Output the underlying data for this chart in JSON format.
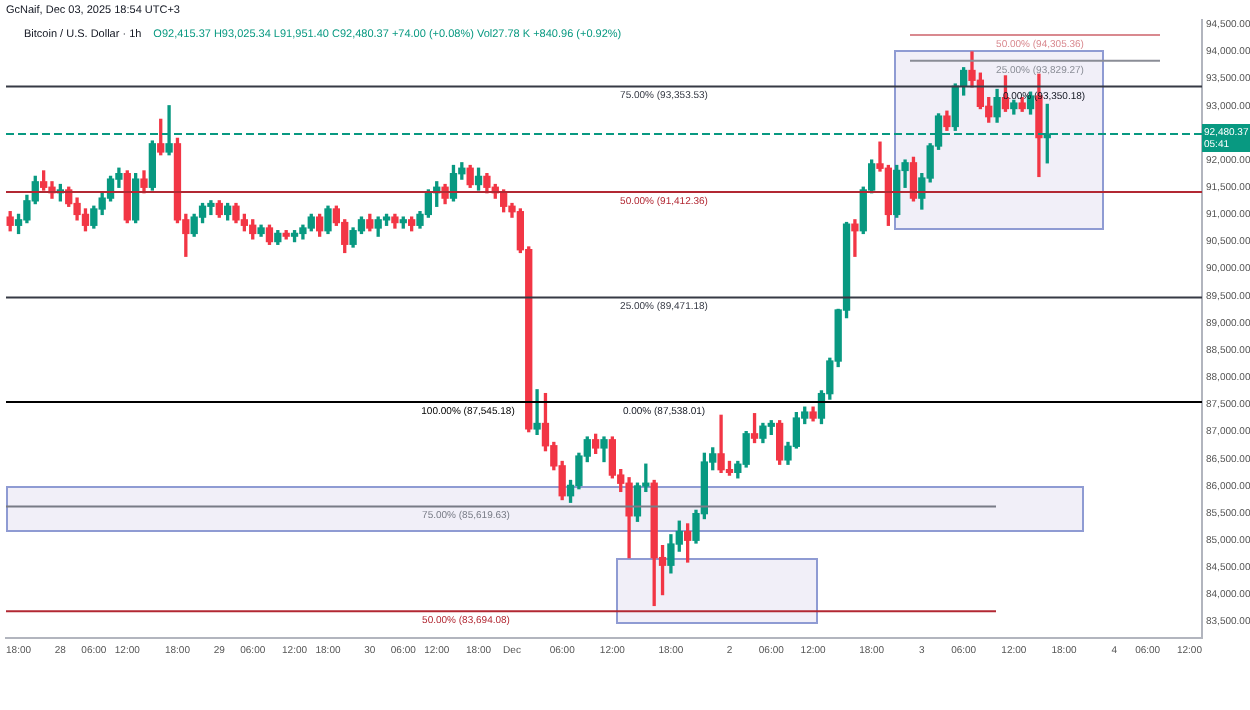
{
  "chart_data": {
    "type": "candlestick",
    "title": "Bitcoin / U.S. Dollar · 1h",
    "subtitle": "O92,415.37 H93,025.34 L91,951.40 C92,480.37 +74.00 (+0.08%) Vol27.78 K +840.96 (+0.92%)",
    "annotations": [
      "GcNaif, Dec 03, 2025 18:54 UTC+3",
      "05:41",
      {
        "text": "0.00% (87,538.01)",
        "y": 87538.01
      },
      {
        "text": "0.00% (93,350.18)",
        "y": 93350.18
      }
    ],
    "categories": [
      null,
      "18:00",
      null,
      null,
      null,
      null,
      "28",
      null,
      null,
      null,
      "06:00",
      null,
      null,
      null,
      "12:00",
      null,
      null,
      null,
      null,
      null,
      "18:00",
      null,
      null,
      null,
      null,
      "29",
      null,
      null,
      null,
      "06:00",
      null,
      null,
      null,
      null,
      "12:00",
      null,
      null,
      null,
      "18:00",
      null,
      null,
      null,
      null,
      "30",
      null,
      null,
      null,
      "06:00",
      null,
      null,
      null,
      "12:00",
      null,
      null,
      null,
      null,
      "18:00",
      null,
      null,
      null,
      "Dec",
      null,
      null,
      null,
      null,
      null,
      "06:00",
      null,
      null,
      null,
      null,
      null,
      "12:00",
      null,
      null,
      null,
      null,
      null,
      null,
      "18:00",
      null,
      null,
      null,
      null,
      null,
      null,
      "2",
      null,
      null,
      null,
      null,
      "06:00",
      null,
      null,
      null,
      null,
      "12:00",
      null,
      null,
      null,
      null,
      null,
      null,
      "18:00",
      null,
      null,
      null,
      null,
      null,
      "3",
      null,
      null,
      null,
      null,
      "06:00",
      null,
      null,
      null,
      null,
      null,
      "12:00",
      null,
      null,
      null,
      null,
      null,
      "18:00",
      null,
      null,
      null,
      null,
      null,
      "4",
      null,
      null,
      null,
      "06:00",
      null,
      null,
      null,
      null,
      "12:00",
      null
    ],
    "ohlc": [
      [
        90950,
        91050,
        90700,
        90800
      ],
      [
        90800,
        91000,
        90650,
        90900
      ],
      [
        90900,
        91350,
        90850,
        91250
      ],
      [
        91250,
        91700,
        91200,
        91600
      ],
      [
        91600,
        91800,
        91450,
        91500
      ],
      [
        91500,
        91600,
        91300,
        91400
      ],
      [
        91400,
        91550,
        91250,
        91450
      ],
      [
        91450,
        91500,
        91150,
        91200
      ],
      [
        91200,
        91300,
        90900,
        91000
      ],
      [
        91000,
        91100,
        90700,
        90800
      ],
      [
        90800,
        91150,
        90750,
        91100
      ],
      [
        91100,
        91400,
        91000,
        91300
      ],
      [
        91300,
        91700,
        91250,
        91650
      ],
      [
        91650,
        91850,
        91500,
        91750
      ],
      [
        91750,
        91800,
        90850,
        90900
      ],
      [
        90900,
        91750,
        90850,
        91650
      ],
      [
        91650,
        91800,
        91400,
        91500
      ],
      [
        91500,
        92350,
        91450,
        92300
      ],
      [
        92300,
        92750,
        92100,
        92150
      ],
      [
        92150,
        93000,
        92100,
        92300
      ],
      [
        92300,
        92400,
        90850,
        90900
      ],
      [
        90900,
        91000,
        90230,
        90650
      ],
      [
        90650,
        91000,
        90600,
        90950
      ],
      [
        90950,
        91200,
        90850,
        91150
      ],
      [
        91150,
        91250,
        91000,
        91200
      ],
      [
        91200,
        91250,
        90950,
        91000
      ],
      [
        91000,
        91200,
        90900,
        91150
      ],
      [
        91150,
        91200,
        90850,
        90900
      ],
      [
        90900,
        91000,
        90700,
        90800
      ],
      [
        90800,
        90900,
        90550,
        90650
      ],
      [
        90650,
        90800,
        90600,
        90750
      ],
      [
        90750,
        90800,
        90450,
        90500
      ],
      [
        90500,
        90700,
        90450,
        90650
      ],
      [
        90650,
        90700,
        90550,
        90600
      ],
      [
        90600,
        90700,
        90500,
        90650
      ],
      [
        90650,
        90800,
        90550,
        90750
      ],
      [
        90750,
        91000,
        90700,
        90950
      ],
      [
        90950,
        91000,
        90600,
        90700
      ],
      [
        90700,
        91150,
        90650,
        91100
      ],
      [
        91100,
        91150,
        90800,
        90850
      ],
      [
        90850,
        90900,
        90300,
        90450
      ],
      [
        90450,
        90750,
        90400,
        90700
      ],
      [
        90700,
        90950,
        90650,
        90900
      ],
      [
        90900,
        91000,
        90700,
        90750
      ],
      [
        90750,
        90950,
        90600,
        90900
      ],
      [
        90900,
        91000,
        90800,
        90950
      ],
      [
        90950,
        91000,
        90750,
        90850
      ],
      [
        90850,
        90950,
        90750,
        90900
      ],
      [
        90900,
        90950,
        90700,
        90800
      ],
      [
        90800,
        91050,
        90750,
        91000
      ],
      [
        91000,
        91450,
        90950,
        91400
      ],
      [
        91400,
        91600,
        91150,
        91500
      ],
      [
        91500,
        91550,
        91200,
        91300
      ],
      [
        91300,
        91900,
        91250,
        91750
      ],
      [
        91750,
        91950,
        91650,
        91850
      ],
      [
        91850,
        91900,
        91500,
        91550
      ],
      [
        91550,
        91850,
        91450,
        91700
      ],
      [
        91700,
        91750,
        91400,
        91500
      ],
      [
        91500,
        91550,
        91300,
        91400
      ],
      [
        91400,
        91450,
        91050,
        91150
      ],
      [
        91150,
        91200,
        90950,
        91050
      ],
      [
        91050,
        91100,
        90300,
        90350
      ],
      [
        90350,
        90400,
        87000,
        87050
      ],
      [
        87050,
        87770,
        86950,
        87150
      ],
      [
        87150,
        87700,
        86650,
        86740
      ],
      [
        86740,
        86800,
        86300,
        86370
      ],
      [
        86370,
        86450,
        85750,
        85820
      ],
      [
        85820,
        86100,
        85700,
        86010
      ],
      [
        86010,
        86600,
        85950,
        86550
      ],
      [
        86550,
        86900,
        86450,
        86850
      ],
      [
        86850,
        86950,
        86600,
        86700
      ],
      [
        86700,
        86900,
        86450,
        86850
      ],
      [
        86850,
        86900,
        86150,
        86200
      ],
      [
        86200,
        86300,
        85900,
        86050
      ],
      [
        86050,
        86150,
        84680,
        85450
      ],
      [
        85450,
        86050,
        85350,
        86000
      ],
      [
        86000,
        86400,
        85900,
        86050
      ],
      [
        86050,
        86100,
        83800,
        84680
      ],
      [
        84680,
        84900,
        84000,
        84540
      ],
      [
        84540,
        85100,
        84400,
        84930
      ],
      [
        84930,
        85350,
        84800,
        85160
      ],
      [
        85160,
        85300,
        84600,
        85000
      ],
      [
        85000,
        85550,
        84950,
        85490
      ],
      [
        85490,
        86600,
        85400,
        86440
      ],
      [
        86440,
        86700,
        86300,
        86590
      ],
      [
        86590,
        87300,
        86250,
        86300
      ],
      [
        86300,
        86450,
        86200,
        86250
      ],
      [
        86250,
        86450,
        86150,
        86400
      ],
      [
        86400,
        87000,
        86350,
        86960
      ],
      [
        86960,
        87330,
        86800,
        86880
      ],
      [
        86880,
        87150,
        86800,
        87100
      ],
      [
        87100,
        87200,
        86950,
        87150
      ],
      [
        87150,
        87200,
        86400,
        86480
      ],
      [
        86480,
        86800,
        86400,
        86730
      ],
      [
        86730,
        87350,
        86700,
        87250
      ],
      [
        87250,
        87450,
        87150,
        87360
      ],
      [
        87360,
        87450,
        87200,
        87250
      ],
      [
        87250,
        87750,
        87150,
        87700
      ],
      [
        87700,
        88350,
        87600,
        88300
      ],
      [
        88300,
        89250,
        88200,
        89240
      ],
      [
        89240,
        90850,
        89100,
        90820
      ],
      [
        90820,
        90900,
        90230,
        90700
      ],
      [
        90700,
        91500,
        90650,
        91450
      ],
      [
        91450,
        92000,
        91400,
        91930
      ],
      [
        91930,
        92330,
        91800,
        91850
      ],
      [
        91850,
        91900,
        90800,
        91000
      ],
      [
        91000,
        91900,
        90950,
        91810
      ],
      [
        91810,
        92000,
        91500,
        91950
      ],
      [
        91950,
        92050,
        91250,
        91300
      ],
      [
        91300,
        91750,
        91100,
        91670
      ],
      [
        91670,
        92300,
        91600,
        92260
      ],
      [
        92260,
        92850,
        92200,
        92810
      ],
      [
        92810,
        92900,
        92550,
        92620
      ],
      [
        92620,
        93400,
        92550,
        93360
      ],
      [
        93360,
        93700,
        93200,
        93650
      ],
      [
        93650,
        93990,
        93350,
        93470
      ],
      [
        93470,
        93600,
        92950,
        92990
      ],
      [
        92990,
        93150,
        92700,
        92800
      ],
      [
        92800,
        93300,
        92700,
        93150
      ],
      [
        93150,
        93550,
        92900,
        92950
      ],
      [
        92950,
        93100,
        92850,
        93050
      ],
      [
        93050,
        93150,
        92900,
        92950
      ],
      [
        92950,
        93250,
        92850,
        93180
      ],
      [
        93180,
        93580,
        91700,
        92415
      ],
      [
        92415,
        93025,
        91951,
        92480
      ],
      null,
      null,
      null,
      null,
      null,
      null,
      null,
      null,
      null,
      null,
      null,
      null,
      null,
      null,
      null,
      null,
      null,
      null
    ],
    "ylim": [
      83200,
      94580
    ],
    "yticks": [
      {
        "value": 83500,
        "label": "83,500.00"
      },
      {
        "value": 84000,
        "label": "84,000.00"
      },
      {
        "value": 84500,
        "label": "84,500.00"
      },
      {
        "value": 85000,
        "label": "85,000.00"
      },
      {
        "value": 85500,
        "label": "85,500.00"
      },
      {
        "value": 86000,
        "label": "86,000.00"
      },
      {
        "value": 86500,
        "label": "86,500.00"
      },
      {
        "value": 87000,
        "label": "87,000.00"
      },
      {
        "value": 87500,
        "label": "87,500.00"
      },
      {
        "value": 88000,
        "label": "88,000.00"
      },
      {
        "value": 88500,
        "label": "88,500.00"
      },
      {
        "value": 89000,
        "label": "89,000.00"
      },
      {
        "value": 89500,
        "label": "89,500.00"
      },
      {
        "value": 90000,
        "label": "90,000.00"
      },
      {
        "value": 90500,
        "label": "90,500.00"
      },
      {
        "value": 91000,
        "label": "91,000.00"
      },
      {
        "value": 91500,
        "label": "91,500.00"
      },
      {
        "value": 92000,
        "label": "92,000.00"
      },
      {
        "value": 93000,
        "label": "93,000.00"
      },
      {
        "value": 93500,
        "label": "93,500.00"
      },
      {
        "value": 94000,
        "label": "94,000.00"
      },
      {
        "value": 94500,
        "label": "94,500.00"
      }
    ],
    "ref_lines": [
      {
        "axis": "y",
        "value": 93353.53,
        "label": "75.00% (93,353.53)",
        "color": "#363a45"
      },
      {
        "axis": "y",
        "value": 91412.36,
        "label": "50.00% (91,412.36)",
        "color": "#b22833"
      },
      {
        "axis": "y",
        "value": 89471.18,
        "label": "25.00% (89,471.18)",
        "color": "#363a45"
      },
      {
        "axis": "y",
        "value": 87545.18,
        "label": "100.00% (87,545.18)",
        "color": "#000000"
      },
      {
        "axis": "y",
        "value": 85619.63,
        "label": "75.00% (85,619.63)",
        "color": "#787b86"
      },
      {
        "axis": "y",
        "value": 83694.08,
        "label": "50.00% (83,694.08)",
        "color": "#b22833"
      },
      {
        "axis": "y",
        "value": 94305.36,
        "label": "50.00% (94,305.36)",
        "color": "#d9898f"
      },
      {
        "axis": "y",
        "value": 93829.27,
        "label": "25.00% (93,829.27)",
        "color": "#8a8d96"
      },
      {
        "axis": "y",
        "value": 92480.37,
        "label": "92,480.37",
        "color": "#089981",
        "line_style": "dashed"
      }
    ]
  }
}
